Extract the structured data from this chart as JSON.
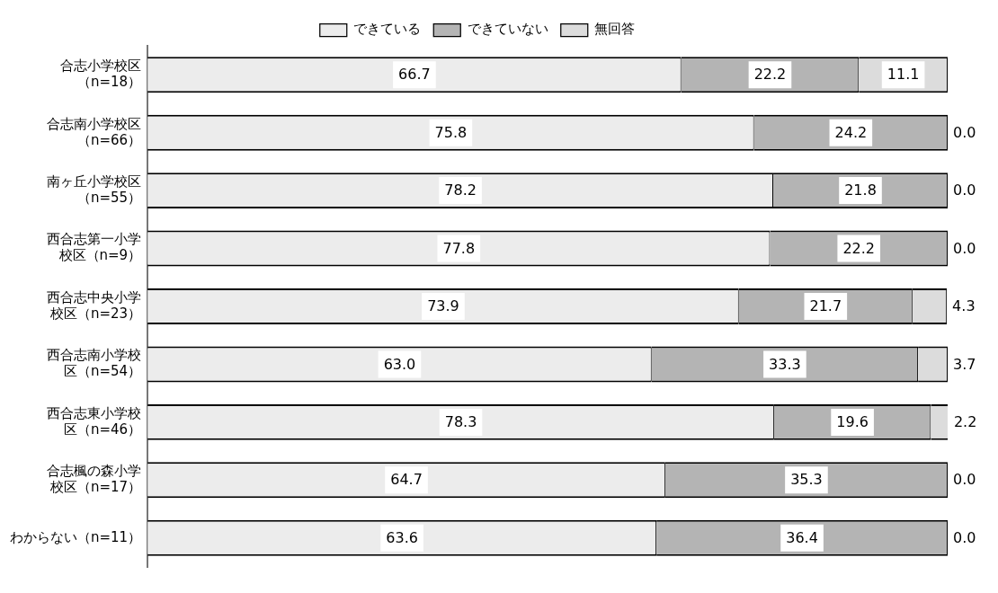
{
  "chart_data": {
    "type": "bar",
    "orientation": "horizontal",
    "stacked": true,
    "categories": [
      "合志小学校区（n=18）",
      "合志南小学校区（n=66）",
      "南ヶ丘小学校区（n=55）",
      "西合志第一小学校区（n=9）",
      "西合志中央小学校区（n=23）",
      "西合志南小学校区（n=54）",
      "西合志東小学校区（n=46）",
      "合志楓の森小学校区（n=17）",
      "わからない（n=11）"
    ],
    "series": [
      {
        "name": "できている",
        "color": "#ececec",
        "values": [
          66.7,
          75.8,
          78.2,
          77.8,
          73.9,
          63.0,
          78.3,
          64.7,
          63.6
        ],
        "value_labels": [
          "66.7",
          "75.8",
          "78.2",
          "77.8",
          "73.9",
          "63.0",
          "78.3",
          "64.7",
          "63.6"
        ]
      },
      {
        "name": "できていない",
        "color": "#b4b4b4",
        "values": [
          22.2,
          24.2,
          21.8,
          22.2,
          21.7,
          33.3,
          19.6,
          35.3,
          36.4
        ],
        "value_labels": [
          "22.2",
          "24.2",
          "21.8",
          "22.2",
          "21.7",
          "33.3",
          "19.6",
          "35.3",
          "36.4"
        ]
      },
      {
        "name": "無回答",
        "color": "#dcdcdc",
        "values": [
          11.1,
          0.0,
          0.0,
          0.0,
          4.3,
          3.7,
          2.2,
          0.0,
          0.0
        ],
        "value_labels": [
          "11.1",
          "0.0",
          "0.0",
          "0.0",
          "4.3",
          "3.7",
          "2.2",
          "0.0",
          "0.0"
        ]
      }
    ],
    "xlim": [
      0,
      100
    ],
    "tick_labels": "y",
    "grid": false,
    "legend": "top"
  }
}
